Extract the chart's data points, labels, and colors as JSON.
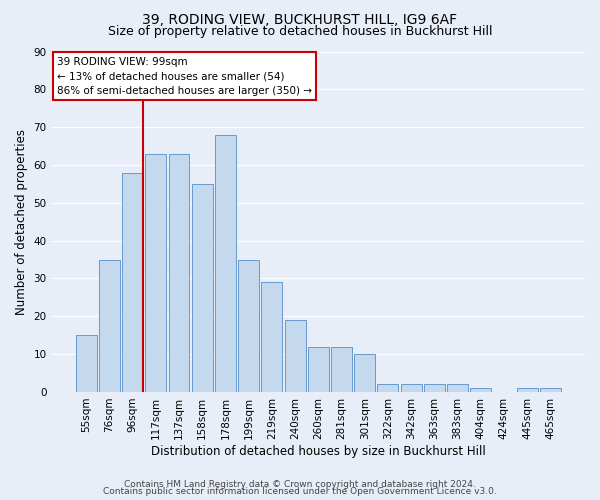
{
  "title": "39, RODING VIEW, BUCKHURST HILL, IG9 6AF",
  "subtitle": "Size of property relative to detached houses in Buckhurst Hill",
  "xlabel": "Distribution of detached houses by size in Buckhurst Hill",
  "ylabel": "Number of detached properties",
  "categories": [
    "55sqm",
    "76sqm",
    "96sqm",
    "117sqm",
    "137sqm",
    "158sqm",
    "178sqm",
    "199sqm",
    "219sqm",
    "240sqm",
    "260sqm",
    "281sqm",
    "301sqm",
    "322sqm",
    "342sqm",
    "363sqm",
    "383sqm",
    "404sqm",
    "424sqm",
    "445sqm",
    "465sqm"
  ],
  "values": [
    15,
    35,
    58,
    63,
    63,
    55,
    68,
    35,
    29,
    19,
    12,
    12,
    10,
    2,
    2,
    2,
    2,
    1,
    0,
    1,
    1
  ],
  "bar_color": "#c5d9ee",
  "bar_edge_color": "#6699cc",
  "vline_x_index": 2,
  "vline_color": "#cc0000",
  "annotation_box_text": "39 RODING VIEW: 99sqm\n← 13% of detached houses are smaller (54)\n86% of semi-detached houses are larger (350) →",
  "annotation_box_color": "#ffffff",
  "annotation_box_edge_color": "#cc0000",
  "ylim": [
    0,
    90
  ],
  "yticks": [
    0,
    10,
    20,
    30,
    40,
    50,
    60,
    70,
    80,
    90
  ],
  "background_color": "#e8eef8",
  "plot_background": "#e8eef8",
  "grid_color": "#ffffff",
  "footer_line1": "Contains HM Land Registry data © Crown copyright and database right 2024.",
  "footer_line2": "Contains public sector information licensed under the Open Government Licence v3.0.",
  "title_fontsize": 10,
  "subtitle_fontsize": 9,
  "xlabel_fontsize": 8.5,
  "ylabel_fontsize": 8.5,
  "tick_fontsize": 7.5,
  "annotation_fontsize": 7.5,
  "footer_fontsize": 6.5
}
